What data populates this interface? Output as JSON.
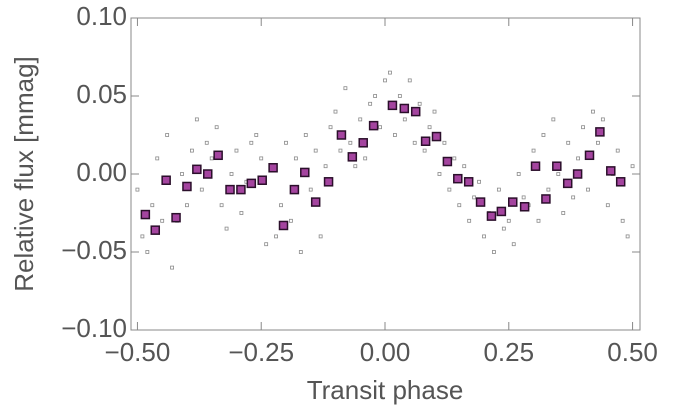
{
  "chart_data": {
    "type": "scatter",
    "xlabel": "Transit phase",
    "ylabel": "Relative flux [mmag]",
    "xlim": [
      -0.513,
      0.515
    ],
    "ylim": [
      -0.1,
      0.1
    ],
    "xticks": [
      {
        "value": -0.5,
        "label": "−0.50"
      },
      {
        "value": -0.25,
        "label": "−0.25"
      },
      {
        "value": 0,
        "label": "0.00"
      },
      {
        "value": 0.25,
        "label": "0.25"
      },
      {
        "value": 0.5,
        "label": "0.50"
      }
    ],
    "yticks": [
      {
        "value": -0.1,
        "label": "−0.10"
      },
      {
        "value": -0.05,
        "label": "−0.05"
      },
      {
        "value": 0,
        "label": "0.00"
      },
      {
        "value": 0.05,
        "label": "0.05"
      },
      {
        "value": 0.1,
        "label": "0.10"
      }
    ],
    "series": [
      {
        "color": "#8a8a8a",
        "fill": "none",
        "x": [
          -0.5,
          -0.49,
          -0.48,
          -0.47,
          -0.46,
          -0.45,
          -0.44,
          -0.43,
          -0.42,
          -0.41,
          -0.4,
          -0.39,
          -0.38,
          -0.37,
          -0.36,
          -0.35,
          -0.34,
          -0.33,
          -0.32,
          -0.31,
          -0.3,
          -0.29,
          -0.28,
          -0.27,
          -0.26,
          -0.25,
          -0.24,
          -0.23,
          -0.22,
          -0.21,
          -0.2,
          -0.19,
          -0.18,
          -0.17,
          -0.16,
          -0.15,
          -0.14,
          -0.13,
          -0.12,
          -0.11,
          -0.1,
          -0.09,
          -0.08,
          -0.07,
          -0.06,
          -0.05,
          -0.04,
          -0.03,
          -0.02,
          -0.01,
          0,
          0.01,
          0.02,
          0.03,
          0.04,
          0.05,
          0.06,
          0.07,
          0.08,
          0.09,
          0.1,
          0.11,
          0.12,
          0.13,
          0.14,
          0.15,
          0.16,
          0.17,
          0.18,
          0.19,
          0.2,
          0.21,
          0.22,
          0.23,
          0.24,
          0.25,
          0.26,
          0.27,
          0.28,
          0.29,
          0.3,
          0.31,
          0.32,
          0.33,
          0.34,
          0.35,
          0.36,
          0.37,
          0.38,
          0.39,
          0.4,
          0.41,
          0.42,
          0.43,
          0.44,
          0.45,
          0.46,
          0.47,
          0.48,
          0.49,
          0.5
        ],
        "values": [
          -0.01,
          -0.04,
          -0.05,
          -0.02,
          0.01,
          -0.03,
          0.025,
          -0.06,
          -0.03,
          0.0,
          -0.02,
          0.015,
          0.035,
          -0.01,
          0.02,
          0.01,
          0.03,
          -0.02,
          -0.035,
          0.0,
          0.015,
          -0.025,
          -0.005,
          0.02,
          0.025,
          0.01,
          -0.045,
          0.005,
          -0.04,
          -0.02,
          0.02,
          -0.03,
          0.01,
          -0.05,
          0.025,
          -0.01,
          0.015,
          -0.04,
          0.005,
          0.03,
          0.04,
          0.015,
          0.055,
          0.02,
          0.005,
          0.035,
          0.01,
          0.045,
          0.05,
          0.03,
          0.06,
          0.065,
          0.025,
          0.05,
          0.035,
          0.06,
          0.02,
          0.045,
          0.015,
          0.03,
          0.04,
          0.0,
          0.02,
          -0.01,
          0.01,
          -0.02,
          0.005,
          -0.03,
          -0.015,
          -0.005,
          -0.04,
          -0.025,
          -0.05,
          -0.01,
          -0.035,
          -0.03,
          -0.045,
          0.0,
          -0.015,
          -0.02,
          0.015,
          -0.03,
          0.025,
          -0.01,
          0.035,
          0.0,
          -0.025,
          0.02,
          -0.015,
          0.01,
          0.03,
          -0.01,
          0.04,
          0.02,
          0.035,
          -0.02,
          0.0,
          0.015,
          -0.03,
          -0.04,
          0.005
        ]
      },
      {
        "color": "#2b0f2b",
        "fill": "#a4449f",
        "x": [
          -0.484,
          -0.464,
          -0.442,
          -0.422,
          -0.4,
          -0.38,
          -0.358,
          -0.337,
          -0.313,
          -0.291,
          -0.27,
          -0.248,
          -0.226,
          -0.205,
          -0.183,
          -0.162,
          -0.14,
          -0.114,
          -0.088,
          -0.066,
          -0.044,
          -0.023,
          0.015,
          0.039,
          0.062,
          0.082,
          0.104,
          0.126,
          0.147,
          0.169,
          0.193,
          0.215,
          0.235,
          0.258,
          0.282,
          0.304,
          0.325,
          0.347,
          0.369,
          0.389,
          0.413,
          0.434,
          0.456,
          0.476
        ],
        "values": [
          -0.026,
          -0.036,
          -0.004,
          -0.028,
          -0.008,
          0.003,
          0.0,
          0.012,
          -0.01,
          -0.01,
          -0.006,
          -0.004,
          0.004,
          -0.033,
          -0.01,
          0.001,
          -0.018,
          -0.005,
          0.025,
          0.011,
          0.02,
          0.031,
          0.044,
          0.042,
          0.04,
          0.021,
          0.024,
          0.008,
          -0.003,
          -0.005,
          -0.018,
          -0.027,
          -0.024,
          -0.018,
          -0.021,
          0.005,
          -0.016,
          0.005,
          -0.006,
          0.0,
          0.012,
          0.027,
          0.002,
          -0.005
        ]
      }
    ]
  }
}
